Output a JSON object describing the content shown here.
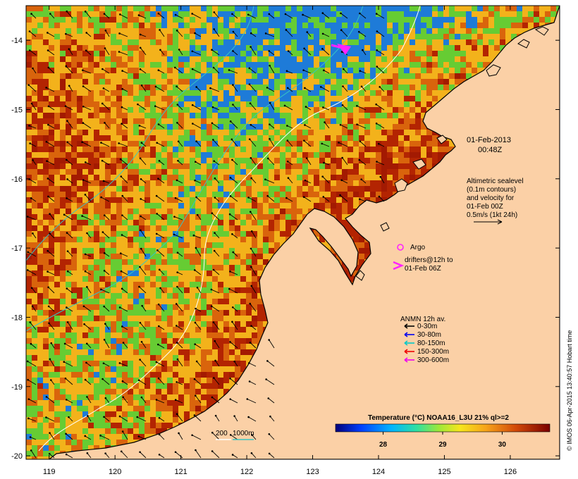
{
  "map": {
    "lat_range": [
      -20.05,
      -13.5
    ],
    "lon_range": [
      118.65,
      126.75
    ],
    "lat_ticks": [
      "-14",
      "-15",
      "-16",
      "-17",
      "-18",
      "-19",
      "-20"
    ],
    "lon_ticks": [
      "119",
      "120",
      "121",
      "122",
      "123",
      "124",
      "125",
      "126"
    ],
    "colors": {
      "land": "#fbd0a6",
      "sst_warm": "#a31a02",
      "sst_mid": "#d9640c",
      "sst_cool": "#f3b21b",
      "sst_green": "#66cc33",
      "sst_blue": "#1e7bd8",
      "coast": "#000000",
      "contour_200": "#ffffff",
      "contour_1000": "#38c6c2",
      "drifter": "#ff22ff"
    }
  },
  "annotations": {
    "date": "01-Feb-2013",
    "time": "00:48Z",
    "altimetry": [
      "Altimetric sealevel",
      "(0.1m contours)",
      "and velocity for",
      "01-Feb 00Z",
      "0.5m/s (1kt 24h)"
    ],
    "argo_label": "Argo",
    "drifters": [
      "drifters@12h to",
      "01-Feb 06Z"
    ],
    "contour_labels": [
      "200",
      "1000m"
    ]
  },
  "legend": {
    "title": "ANMN 12h av.",
    "items": [
      {
        "label": "0-30m",
        "color": "#000000"
      },
      {
        "label": "30-80m",
        "color": "#0000ee"
      },
      {
        "label": "80-150m",
        "color": "#00c8c8"
      },
      {
        "label": "150-300m",
        "color": "#ee0000"
      },
      {
        "label": "300-600m",
        "color": "#ee00ee"
      }
    ]
  },
  "colorbar": {
    "title": "Temperature (°C) NOAA16_L3U 21% ql>=2",
    "ticks": [
      "28",
      "29",
      "30"
    ],
    "range": [
      27.2,
      30.8
    ]
  },
  "credit": "© IMOS 06-Apr-2015 13:40:57 Hobart time"
}
